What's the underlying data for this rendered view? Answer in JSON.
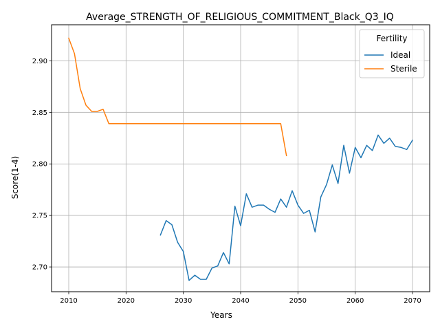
{
  "chart_data": {
    "type": "line",
    "title": "Average_STRENGTH_OF_RELIGIOUS_COMMITMENT_Black_Q3_IQ",
    "xlabel": "Years",
    "ylabel": "Score(1-4)",
    "xlim": [
      2007,
      2073
    ],
    "ylim": [
      2.676,
      2.935
    ],
    "xticks": [
      2010,
      2020,
      2030,
      2040,
      2050,
      2060,
      2070
    ],
    "yticks": [
      2.7,
      2.75,
      2.8,
      2.85,
      2.9
    ],
    "ytick_labels": [
      "2.70",
      "2.75",
      "2.80",
      "2.85",
      "2.90"
    ],
    "grid": true,
    "legend": {
      "title": "Fertility",
      "placement": "top-right"
    },
    "series": [
      {
        "name": "Ideal",
        "color": "#1f77b4",
        "x": [
          2026,
          2027,
          2028,
          2029,
          2030,
          2031,
          2032,
          2033,
          2034,
          2035,
          2036,
          2037,
          2038,
          2039,
          2040,
          2041,
          2042,
          2043,
          2044,
          2045,
          2046,
          2047,
          2048,
          2049,
          2050,
          2051,
          2052,
          2053,
          2054,
          2055,
          2056,
          2057,
          2058,
          2059,
          2060,
          2061,
          2062,
          2063,
          2064,
          2065,
          2066,
          2067,
          2068,
          2069,
          2070
        ],
        "y": [
          2.731,
          2.745,
          2.741,
          2.724,
          2.715,
          2.687,
          2.692,
          2.688,
          2.688,
          2.699,
          2.701,
          2.714,
          2.703,
          2.759,
          2.74,
          2.771,
          2.758,
          2.76,
          2.76,
          2.756,
          2.753,
          2.766,
          2.758,
          2.774,
          2.76,
          2.752,
          2.755,
          2.734,
          2.768,
          2.78,
          2.799,
          2.781,
          2.818,
          2.791,
          2.816,
          2.806,
          2.818,
          2.813,
          2.828,
          2.82,
          2.825,
          2.817,
          2.816,
          2.814,
          2.823
        ]
      },
      {
        "name": "Sterile",
        "color": "#ff7f0e",
        "x": [
          2010,
          2011,
          2012,
          2013,
          2014,
          2015,
          2016,
          2017,
          2018,
          2019,
          2020,
          2021,
          2022,
          2023,
          2024,
          2025,
          2026,
          2027,
          2028,
          2029,
          2030,
          2031,
          2032,
          2033,
          2034,
          2035,
          2036,
          2037,
          2038,
          2039,
          2040,
          2041,
          2042,
          2043,
          2044,
          2045,
          2046,
          2047,
          2048
        ],
        "y": [
          2.922,
          2.907,
          2.873,
          2.857,
          2.851,
          2.851,
          2.853,
          2.839,
          2.839,
          2.839,
          2.839,
          2.839,
          2.839,
          2.839,
          2.839,
          2.839,
          2.839,
          2.839,
          2.839,
          2.839,
          2.839,
          2.839,
          2.839,
          2.839,
          2.839,
          2.839,
          2.839,
          2.839,
          2.839,
          2.839,
          2.839,
          2.839,
          2.839,
          2.839,
          2.839,
          2.839,
          2.839,
          2.839,
          2.808
        ]
      }
    ]
  }
}
